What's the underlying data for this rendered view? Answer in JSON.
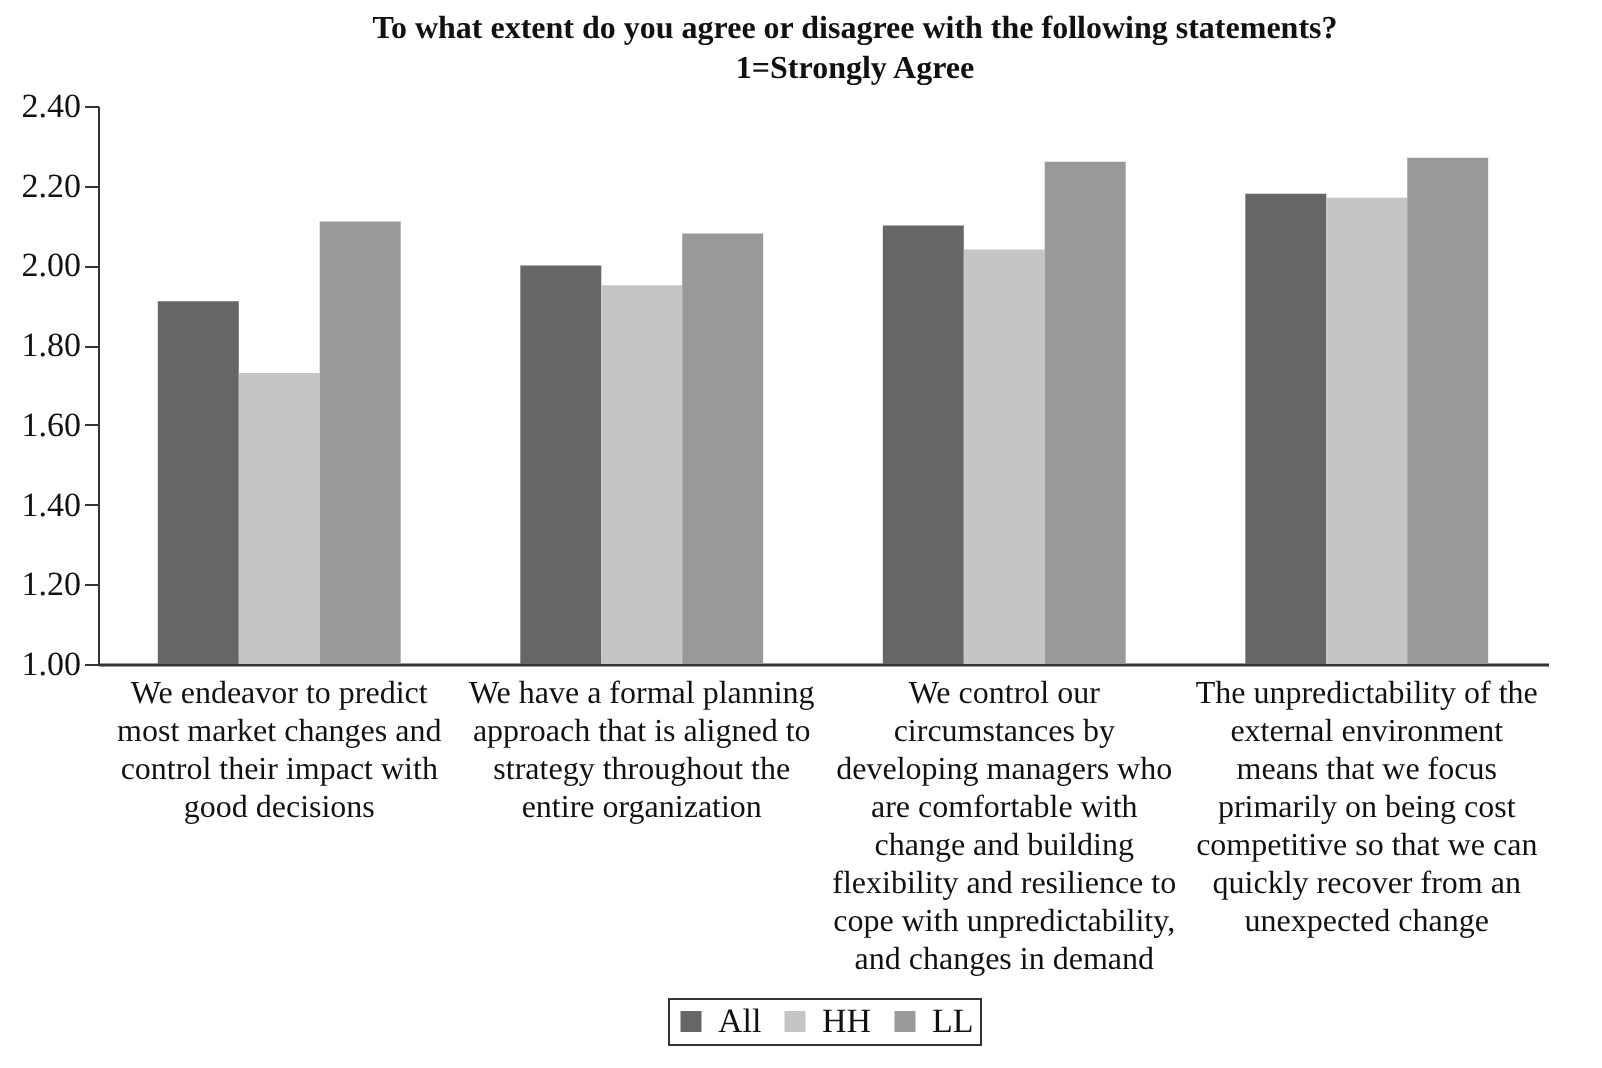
{
  "chart_data": {
    "type": "bar",
    "title": "To what extent do you agree or disagree with the following statements?",
    "subtitle": "1=Strongly Agree",
    "categories": [
      "We endeavor to predict most market changes and control their impact with good decisions",
      "We have a formal planning approach that is aligned to strategy throughout the entire organization",
      "We control our circumstances by developing managers who are comfortable with change and building flexibility and resilience to cope with unpredictability, and changes in demand",
      "The unpredictability of the external environment means that we focus primarily on being cost competitive so that we can quickly recover from an unexpected change"
    ],
    "series": [
      {
        "name": "All",
        "color": "#666664",
        "values": [
          1.91,
          2.0,
          2.1,
          2.18
        ]
      },
      {
        "name": "HH",
        "color": "#c4c6c5",
        "values": [
          1.73,
          1.95,
          2.04,
          2.17
        ]
      },
      {
        "name": "LL",
        "color": "#999999",
        "values": [
          2.11,
          2.08,
          2.26,
          2.27
        ]
      }
    ],
    "ylim": [
      1,
      2.4
    ],
    "yticks": [
      {
        "value": 1,
        "label": "1.00"
      },
      {
        "value": 1.2,
        "label": "1.20"
      },
      {
        "value": 1.4,
        "label": "1.40"
      },
      {
        "value": 1.6,
        "label": "1.60"
      },
      {
        "value": 1.8,
        "label": "1.80"
      },
      {
        "value": 2,
        "label": "2.00"
      },
      {
        "value": 2.2,
        "label": "2.20"
      },
      {
        "value": 2.4,
        "label": "2.40"
      }
    ],
    "grid": false,
    "legend": "bottom"
  }
}
